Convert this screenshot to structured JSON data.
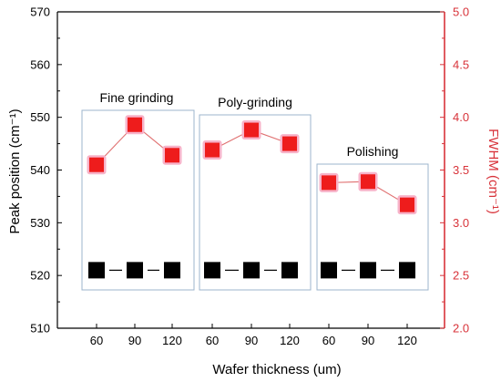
{
  "chart_data": {
    "type": "scatter",
    "groups": [
      {
        "label": "Fine grinding",
        "thickness": [
          60,
          90,
          120
        ]
      },
      {
        "label": "Poly-grinding",
        "thickness": [
          60,
          90,
          120
        ]
      },
      {
        "label": "Polishing",
        "thickness": [
          60,
          90,
          120
        ]
      }
    ],
    "x_tick_labels": [
      "60",
      "90",
      "120",
      "60",
      "90",
      "120",
      "60",
      "90",
      "120"
    ],
    "xlabel": "Wafer thickness (um)",
    "y_left": {
      "label": "Peak position (cm⁻¹)",
      "ylim": [
        510,
        570
      ],
      "ticks": [
        "510",
        "520",
        "530",
        "540",
        "550",
        "560",
        "570"
      ]
    },
    "y_right": {
      "label": "FWHM (cm⁻¹)",
      "ylim": [
        2.0,
        5.0
      ],
      "ticks": [
        "2.0",
        "2.5",
        "3.0",
        "3.5",
        "4.0",
        "4.5",
        "5.0"
      ]
    },
    "series": [
      {
        "axis": "left",
        "marker": "square",
        "values": [
          521,
          521,
          521,
          521,
          521,
          521,
          521,
          521,
          521
        ]
      },
      {
        "axis": "right",
        "marker": "square",
        "values": [
          3.55,
          3.93,
          3.64,
          3.69,
          3.88,
          3.75,
          3.38,
          3.39,
          3.17
        ]
      }
    ],
    "colors": {
      "peak_series": "#000000",
      "fwhm_series": "#ee1c1c",
      "fwhm_glow": "#f7b3c9",
      "right_axis": "#d8333a",
      "group_box": "#9cb6cc"
    },
    "grid": false
  }
}
